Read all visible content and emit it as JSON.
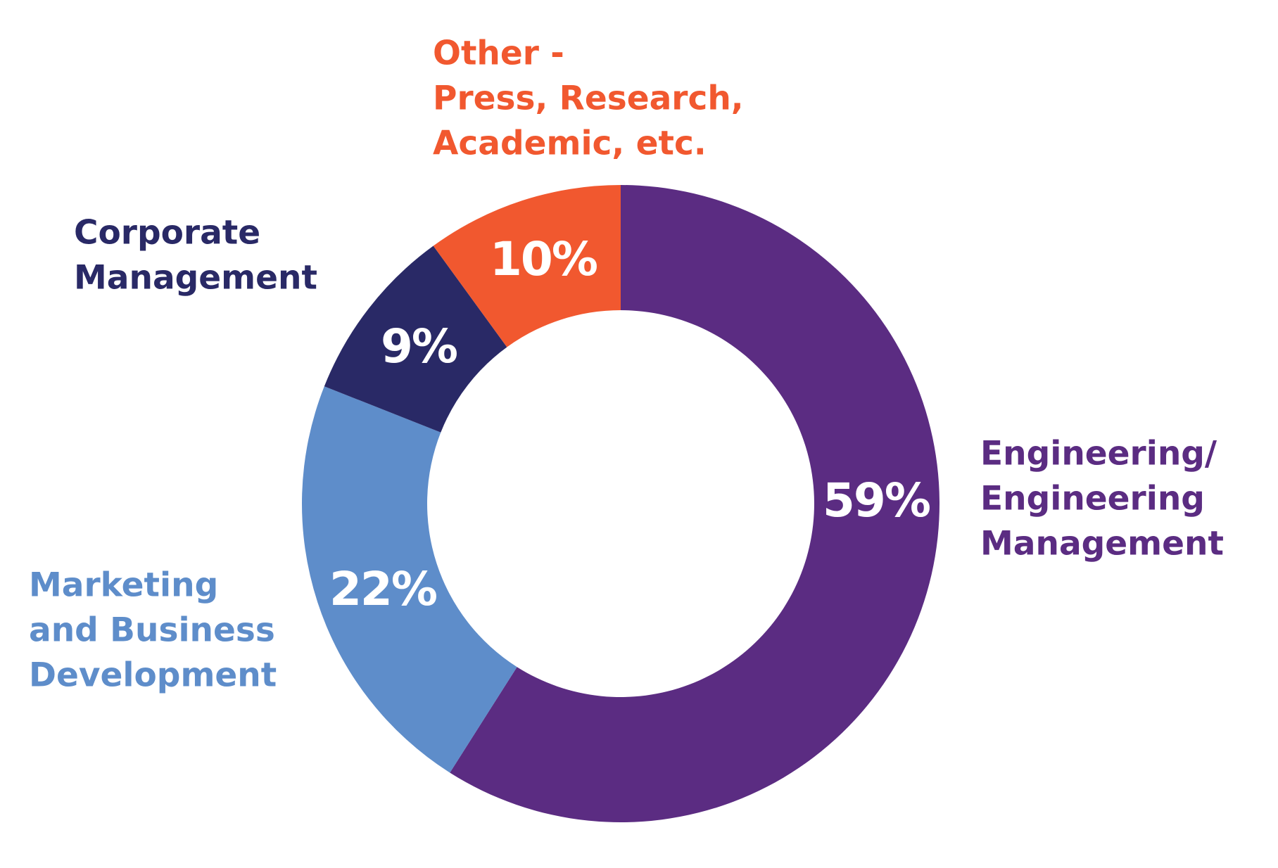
{
  "chart_data": {
    "type": "donut",
    "categories": [
      [
        "Engineering/",
        "Engineering",
        "Management"
      ],
      [
        "Marketing",
        "and Business",
        "Development"
      ],
      [
        "Corporate",
        "Management"
      ],
      [
        "Other -",
        "Press, Research,",
        "Academic, etc."
      ]
    ],
    "values": [
      59,
      22,
      9,
      10
    ],
    "value_labels": [
      "59%",
      "22%",
      "9%",
      "10%"
    ],
    "colors": [
      "#5b2c82",
      "#5e8dca",
      "#292966",
      "#f1582f"
    ]
  }
}
